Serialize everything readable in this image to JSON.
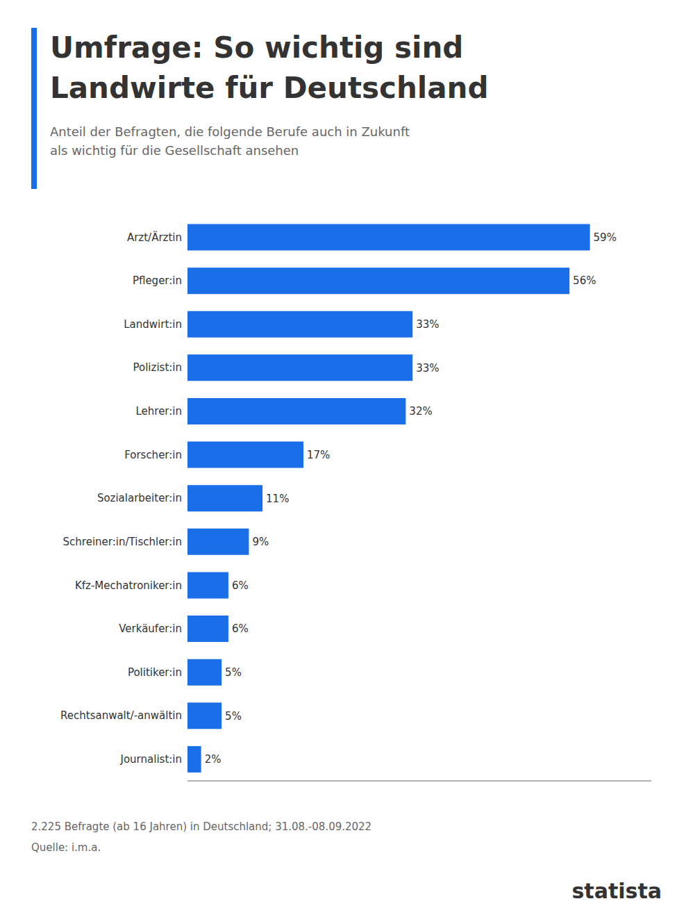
{
  "chart_data": {
    "type": "bar",
    "orientation": "horizontal",
    "title": "Umfrage: So wichtig sind\nLandwirte für Deutschland",
    "subtitle": "Anteil der Befragten, die folgende Berufe auch in Zukunft\nals wichtig für die Gesellschaft ansehen",
    "categories": [
      "Arzt/Ärztin",
      "Pfleger:in",
      "Landwirt:in",
      "Polizist:in",
      "Lehrer:in",
      "Forscher:in",
      "Sozialarbeiter:in",
      "Schreiner:in/Tischler:in",
      "Kfz-Mechatroniker:in",
      "Verkäufer:in",
      "Politiker:in",
      "Rechtsanwalt/-anwältin",
      "Journalist:in"
    ],
    "values": [
      59,
      56,
      33,
      33,
      32,
      17,
      11,
      9,
      6,
      6,
      5,
      5,
      2
    ],
    "value_labels": [
      "59%",
      "56%",
      "33%",
      "33%",
      "32%",
      "17%",
      "11%",
      "9%",
      "6%",
      "6%",
      "5%",
      "5%",
      "2%"
    ],
    "data_labels": true,
    "color": "#1a6fe8",
    "xlim": [
      0,
      68
    ],
    "tick_labels": "y",
    "grid": false,
    "annotations": [
      "2.225 Befragte (ab 16 Jahren) in Deutschland; 31.08.-08.09.2022",
      "Quelle: i.m.a.",
      "statista"
    ]
  }
}
